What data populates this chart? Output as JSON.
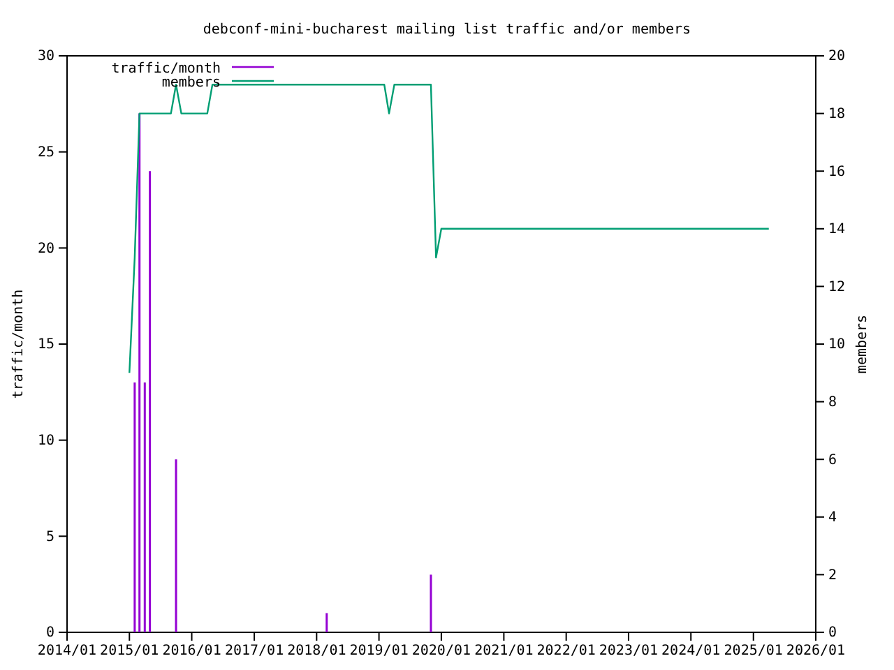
{
  "chart_data": {
    "type": "bar",
    "title": "debconf-mini-bucharest mailing list traffic and/or members",
    "ylabel": "traffic/month",
    "y2label": "members",
    "xlim": [
      "2014-01",
      "2026-01"
    ],
    "xticks": [
      {
        "value": "2014-01",
        "label": "2014/01"
      },
      {
        "value": "2015-01",
        "label": "2015/01"
      },
      {
        "value": "2016-01",
        "label": "2016/01"
      },
      {
        "value": "2017-01",
        "label": "2017/01"
      },
      {
        "value": "2018-01",
        "label": "2018/01"
      },
      {
        "value": "2019-01",
        "label": "2019/01"
      },
      {
        "value": "2020-01",
        "label": "2020/01"
      },
      {
        "value": "2021-01",
        "label": "2021/01"
      },
      {
        "value": "2022-01",
        "label": "2022/01"
      },
      {
        "value": "2023-01",
        "label": "2023/01"
      },
      {
        "value": "2024-01",
        "label": "2024/01"
      },
      {
        "value": "2025-01",
        "label": "2025/01"
      },
      {
        "value": "2026-01",
        "label": "2026/01"
      }
    ],
    "ylim": [
      0,
      30
    ],
    "yticks": [
      0,
      5,
      10,
      15,
      20,
      25,
      30
    ],
    "y2lim": [
      0,
      20
    ],
    "y2ticks": [
      0,
      2,
      4,
      6,
      8,
      10,
      12,
      14,
      16,
      18,
      20
    ],
    "legend": "top left",
    "grid": false,
    "series": [
      {
        "name": "traffic/month",
        "color": "#9400d3",
        "x": [
          "2015-02",
          "2015-03",
          "2015-04",
          "2015-05",
          "2015-10",
          "2018-03",
          "2019-11"
        ],
        "values": [
          13,
          27,
          13,
          24,
          9,
          1,
          3
        ]
      },
      {
        "name": "members",
        "type": "line",
        "axis": "y2",
        "color": "#009e73",
        "x": [
          "2015-01",
          "2015-02",
          "2015-03",
          "2015-09",
          "2015-10",
          "2015-11",
          "2016-04",
          "2016-05",
          "2019-02",
          "2019-03",
          "2019-04",
          "2019-11",
          "2019-12",
          "2020-01",
          "2025-04"
        ],
        "values": [
          9,
          13,
          18,
          18,
          19,
          18,
          18,
          19,
          19,
          18,
          19,
          19,
          13,
          14,
          14
        ]
      }
    ]
  }
}
